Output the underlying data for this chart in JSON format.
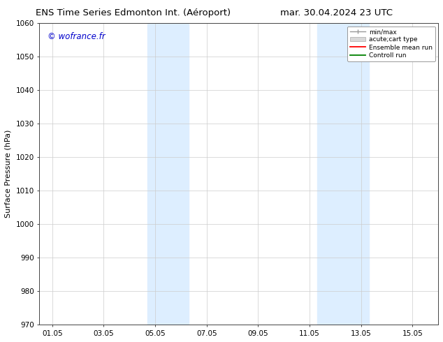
{
  "title_left": "ENS Time Series Edmonton Int. (Aéroport)",
  "title_right": "mar. 30.04.2024 23 UTC",
  "ylabel": "Surface Pressure (hPa)",
  "ylim": [
    970,
    1060
  ],
  "yticks": [
    970,
    980,
    990,
    1000,
    1010,
    1020,
    1030,
    1040,
    1050,
    1060
  ],
  "xtick_labels": [
    "01.05",
    "03.05",
    "05.05",
    "07.05",
    "09.05",
    "11.05",
    "13.05",
    "15.05"
  ],
  "xtick_positions": [
    0,
    2,
    4,
    6,
    8,
    10,
    12,
    14
  ],
  "xlim": [
    -0.5,
    15.0
  ],
  "shaded_bands": [
    {
      "x_start": 3.7,
      "x_end": 5.3
    },
    {
      "x_start": 10.3,
      "x_end": 12.3
    }
  ],
  "background_color": "#ffffff",
  "band_color": "#ddeeff",
  "watermark_text": "© wofrance.fr",
  "watermark_color": "#0000cc",
  "legend_entries": [
    {
      "label": "min/max",
      "color": "#aaaaaa"
    },
    {
      "label": "acute;cart type",
      "color": "#cccccc"
    },
    {
      "label": "Ensemble mean run",
      "color": "#ff0000"
    },
    {
      "label": "Controll run",
      "color": "#008000"
    }
  ],
  "grid_color": "#cccccc",
  "title_fontsize": 9.5,
  "axis_fontsize": 8,
  "tick_fontsize": 7.5
}
